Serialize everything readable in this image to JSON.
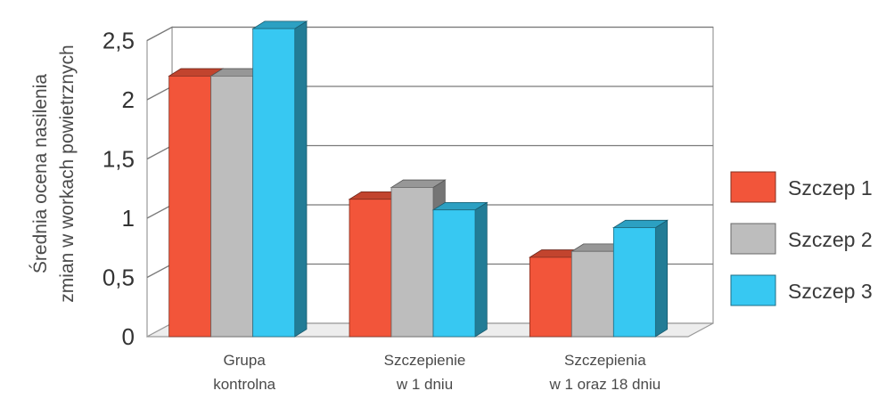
{
  "chart_data": {
    "type": "bar",
    "style": "3d-clustered",
    "ylabel_lines": [
      "Średnia ocena nasilenia",
      "zmian w workach powietrznych"
    ],
    "ylim": [
      0,
      2.5
    ],
    "yticks": [
      "0",
      "0,5",
      "1",
      "1,5",
      "2",
      "2,5"
    ],
    "ytick_values": [
      0,
      0.5,
      1,
      1.5,
      2,
      2.5
    ],
    "grid": true,
    "legend_position": "right",
    "categories": [
      {
        "lines": [
          "Grupa",
          "kontrolna"
        ]
      },
      {
        "lines": [
          "Szczepienie",
          "w 1 dniu"
        ]
      },
      {
        "lines": [
          "Szczepienia",
          "w 1 oraz 18 dniu"
        ]
      }
    ],
    "series": [
      {
        "name": "Szczep 1",
        "color": "#f2553a",
        "values": [
          2.2,
          1.16,
          0.67
        ]
      },
      {
        "name": "Szczep 2",
        "color": "#bdbdbd",
        "values": [
          2.2,
          1.26,
          0.72
        ]
      },
      {
        "name": "Szczep 3",
        "color": "#37c8f2",
        "values": [
          2.6,
          1.07,
          0.92
        ]
      }
    ]
  }
}
